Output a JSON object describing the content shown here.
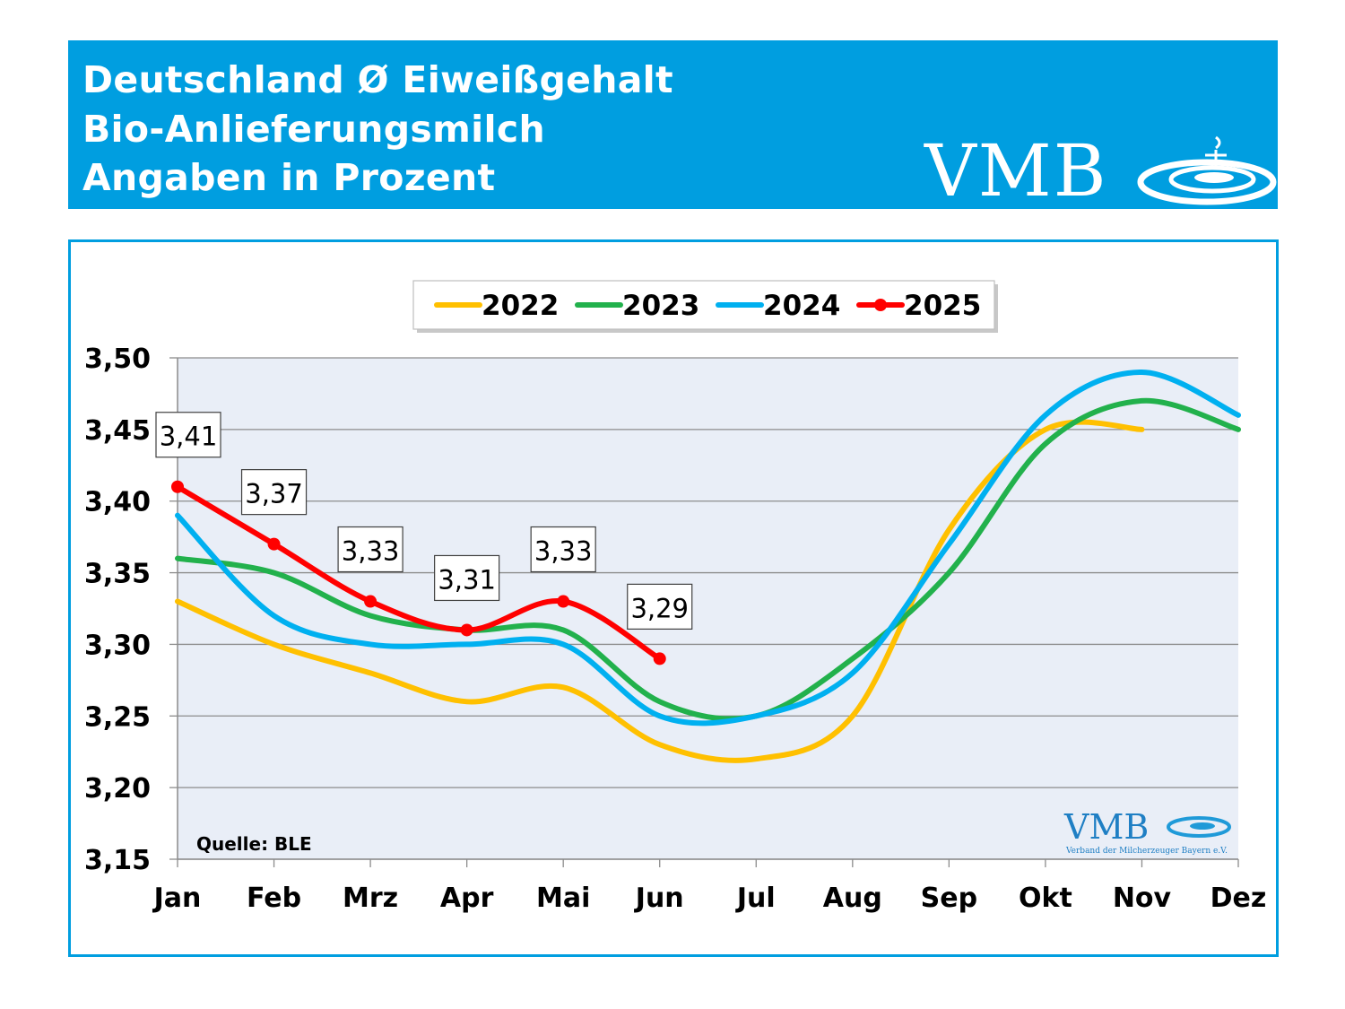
{
  "header": {
    "line1": "Deutschland Ø Eiweißgehalt",
    "line2": "Bio-Anlieferungsmilch",
    "line3": "Angaben in Prozent",
    "logo_text": "VMB",
    "background": "#009ee0"
  },
  "chart_data": {
    "type": "line",
    "title": "",
    "xlabel": "",
    "ylabel": "",
    "categories": [
      "Jan",
      "Feb",
      "Mrz",
      "Apr",
      "Mai",
      "Jun",
      "Jul",
      "Aug",
      "Sep",
      "Okt",
      "Nov",
      "Dez"
    ],
    "ylim": [
      3.15,
      3.5
    ],
    "yticks": [
      "3,15",
      "3,20",
      "3,25",
      "3,30",
      "3,35",
      "3,40",
      "3,45",
      "3,50"
    ],
    "grid": true,
    "legend_position": "top-center",
    "series": [
      {
        "name": "2022",
        "color": "#ffc000",
        "values": [
          3.33,
          3.3,
          3.28,
          3.26,
          3.27,
          3.23,
          3.22,
          3.25,
          3.38,
          3.45,
          3.45,
          null
        ]
      },
      {
        "name": "2023",
        "color": "#22b14c",
        "values": [
          3.36,
          3.35,
          3.32,
          3.31,
          3.31,
          3.26,
          3.25,
          3.29,
          3.35,
          3.44,
          3.47,
          3.45
        ]
      },
      {
        "name": "2024",
        "color": "#00b0f0",
        "values": [
          3.39,
          3.32,
          3.3,
          3.3,
          3.3,
          3.25,
          3.25,
          3.28,
          3.37,
          3.46,
          3.49,
          3.46
        ]
      },
      {
        "name": "2025",
        "color": "#ff0000",
        "markers": true,
        "values": [
          3.41,
          3.37,
          3.33,
          3.31,
          3.33,
          3.29,
          null,
          null,
          null,
          null,
          null,
          null
        ],
        "data_labels": [
          "3,41",
          "3,37",
          "3,33",
          "3,31",
          "3,33",
          "3,29"
        ]
      }
    ],
    "annotations": {
      "source": "Quelle: BLE",
      "watermark_logo": "VMB",
      "watermark_subtitle": "Verband der Milcherzeuger Bayern e.V."
    }
  }
}
